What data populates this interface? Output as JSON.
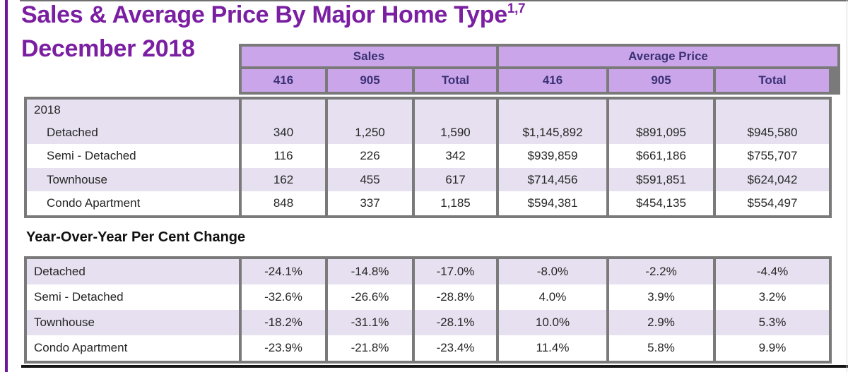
{
  "title": {
    "text": "Sales & Average Price By Major Home Type",
    "superscript": "1,7",
    "subtitle": "December 2018"
  },
  "colors": {
    "accent_purple": "#7b1fa2",
    "header_fill": "#cba5ea",
    "header_text": "#3a3175",
    "row_stripe": "#e7e0f0",
    "grid_gray": "#7a7a7a",
    "left_rule_purple": "#6c189c"
  },
  "header": {
    "groups": [
      "Sales",
      "Average Price"
    ],
    "columns": [
      "416",
      "905",
      "Total",
      "416",
      "905",
      "Total"
    ]
  },
  "table1": {
    "year_label": "2018",
    "rows": [
      {
        "label": "Detached",
        "values": [
          "340",
          "1,250",
          "1,590",
          "$1,145,892",
          "$891,095",
          "$945,580"
        ]
      },
      {
        "label": "Semi - Detached",
        "values": [
          "116",
          "226",
          "342",
          "$939,859",
          "$661,186",
          "$755,707"
        ]
      },
      {
        "label": "Townhouse",
        "values": [
          "162",
          "455",
          "617",
          "$714,456",
          "$591,851",
          "$624,042"
        ]
      },
      {
        "label": "Condo Apartment",
        "values": [
          "848",
          "337",
          "1,185",
          "$594,381",
          "$454,135",
          "$554,497"
        ]
      }
    ]
  },
  "yoy": {
    "section_title": "Year-Over-Year Per Cent Change",
    "rows": [
      {
        "label": "Detached",
        "values": [
          "-24.1%",
          "-14.8%",
          "-17.0%",
          "-8.0%",
          "-2.2%",
          "-4.4%"
        ]
      },
      {
        "label": "Semi - Detached",
        "values": [
          "-32.6%",
          "-26.6%",
          "-28.8%",
          "4.0%",
          "3.9%",
          "3.2%"
        ]
      },
      {
        "label": "Townhouse",
        "values": [
          "-18.2%",
          "-31.1%",
          "-28.1%",
          "10.0%",
          "2.9%",
          "5.3%"
        ]
      },
      {
        "label": "Condo Apartment",
        "values": [
          "-23.9%",
          "-21.8%",
          "-23.4%",
          "11.4%",
          "5.8%",
          "9.9%"
        ]
      }
    ]
  }
}
